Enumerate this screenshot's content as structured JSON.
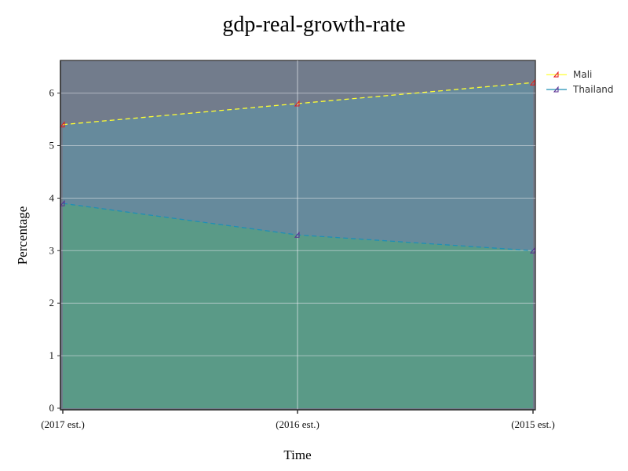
{
  "chart_data": {
    "type": "area",
    "title": "gdp-real-growth-rate",
    "xlabel": "Time",
    "ylabel": "Percentage",
    "categories": [
      "(2017 est.)",
      "(2016 est.)",
      "(2015 est.)"
    ],
    "ylim": [
      0,
      6.6
    ],
    "yticks": [
      "0",
      "1",
      "2",
      "3",
      "4",
      "5",
      "6"
    ],
    "grid": true,
    "legend_position": "top-right",
    "series": [
      {
        "name": "Mali",
        "values": [
          5.4,
          5.8,
          6.2
        ],
        "line_color": "#ffff33",
        "marker_color": "#e41a1c",
        "fill_color": "#668a9c"
      },
      {
        "name": "Thailand",
        "values": [
          3.9,
          3.3,
          3.0
        ],
        "line_color": "#1f8fb5",
        "marker_color": "#5a2d91",
        "fill_color": "#5a9a87"
      }
    ],
    "plot_background": "#727c8c"
  }
}
